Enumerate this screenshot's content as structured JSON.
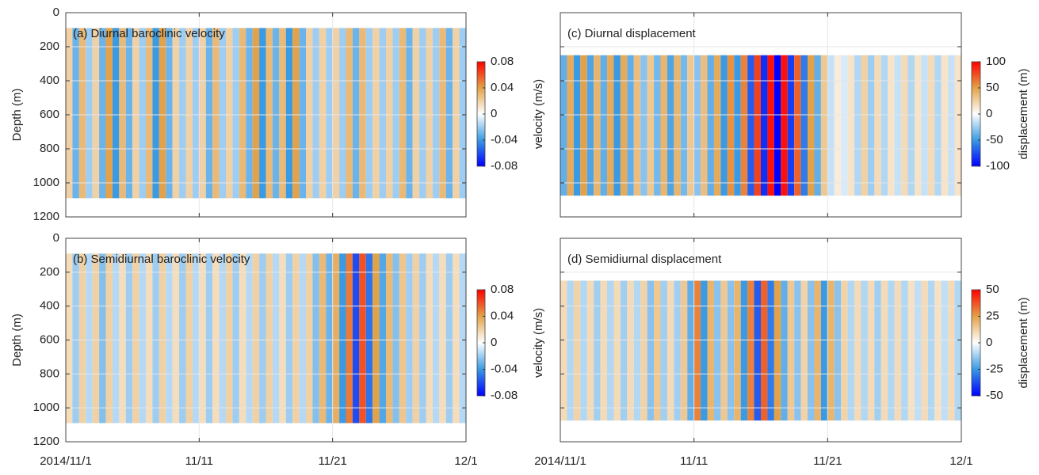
{
  "chart_data": [
    {
      "type": "heatmap",
      "title": "(a) Diurnal baroclinic velocity",
      "ylabel": "Depth (m)",
      "colorbar_label": "velocity (m/s)",
      "xlim": [
        0,
        30
      ],
      "xticks": [
        0,
        10,
        20,
        30
      ],
      "show_xtick_labels": false,
      "ylim": [
        0,
        1200
      ],
      "yticks": [
        0,
        200,
        400,
        600,
        800,
        1000,
        1200
      ],
      "show_ytick_labels": true,
      "y_reversed": true,
      "grid": true,
      "depth_extent": [
        90,
        1090
      ],
      "x": [
        0.25,
        0.75,
        1.25,
        1.75,
        2.25,
        2.75,
        3.25,
        3.75,
        4.25,
        4.75,
        5.25,
        5.75,
        6.25,
        6.75,
        7.25,
        7.75,
        8.25,
        8.75,
        9.25,
        9.75,
        10.25,
        10.75,
        11.25,
        11.75,
        12.25,
        12.75,
        13.25,
        13.75,
        14.25,
        14.75,
        15.25,
        15.75,
        16.25,
        16.75,
        17.25,
        17.75,
        18.25,
        18.75,
        19.25,
        19.75,
        20.25,
        20.75,
        21.25,
        21.75,
        22.25,
        22.75,
        23.25,
        23.75,
        24.25,
        24.75,
        25.25,
        25.75,
        26.25,
        26.75,
        27.25,
        27.75,
        28.25,
        28.75,
        29.25,
        29.75
      ],
      "values": [
        0.02,
        -0.03,
        0.03,
        -0.02,
        0.02,
        -0.03,
        0.04,
        -0.04,
        0.03,
        -0.03,
        0.02,
        -0.02,
        0.03,
        -0.04,
        0.04,
        -0.03,
        0.02,
        -0.02,
        0.02,
        -0.02,
        0.02,
        -0.03,
        0.03,
        -0.02,
        0.02,
        -0.02,
        0.03,
        -0.03,
        0.04,
        -0.04,
        0.03,
        -0.03,
        0.03,
        -0.04,
        0.04,
        -0.03,
        0.02,
        -0.02,
        0.02,
        -0.02,
        0.02,
        -0.02,
        0.03,
        -0.03,
        0.03,
        -0.02,
        0.02,
        -0.02,
        0.02,
        -0.02,
        0.03,
        -0.03,
        0.02,
        -0.02,
        0.02,
        -0.02,
        0.03,
        -0.03,
        0.02,
        -0.02
      ],
      "clim": [
        -0.08,
        0.08
      ],
      "cticks": [
        -0.08,
        -0.04,
        0,
        0.04,
        0.08
      ],
      "colormap": [
        "#0000ff",
        "#3a9ae4",
        "#ffffff",
        "#e3a248",
        "#ff0000"
      ]
    },
    {
      "type": "heatmap",
      "title": "(b) Semidiurnal baroclinic velocity",
      "ylabel": "Depth (m)",
      "colorbar_label": "velocity (m/s)",
      "xlim": [
        0,
        30
      ],
      "xticks": [
        {
          "value": 0,
          "label": "2014/11/1"
        },
        {
          "value": 10,
          "label": "11/11"
        },
        {
          "value": 20,
          "label": "11/21"
        },
        {
          "value": 30,
          "label": "12/1"
        }
      ],
      "show_xtick_labels": true,
      "ylim": [
        0,
        1200
      ],
      "yticks": [
        0,
        200,
        400,
        600,
        800,
        1000,
        1200
      ],
      "show_ytick_labels": true,
      "y_reversed": true,
      "grid": true,
      "depth_extent": [
        90,
        1090
      ],
      "x": [
        0.25,
        0.75,
        1.25,
        1.75,
        2.25,
        2.75,
        3.25,
        3.75,
        4.25,
        4.75,
        5.25,
        5.75,
        6.25,
        6.75,
        7.25,
        7.75,
        8.25,
        8.75,
        9.25,
        9.75,
        10.25,
        10.75,
        11.25,
        11.75,
        12.25,
        12.75,
        13.25,
        13.75,
        14.25,
        14.75,
        15.25,
        15.75,
        16.25,
        16.75,
        17.25,
        17.75,
        18.25,
        18.75,
        19.25,
        19.75,
        20.25,
        20.75,
        21.25,
        21.75,
        22.25,
        22.75,
        23.25,
        23.75,
        24.25,
        24.75,
        25.25,
        25.75,
        26.25,
        26.75,
        27.25,
        27.75,
        28.25,
        28.75,
        29.25,
        29.75
      ],
      "values": [
        0.015,
        -0.02,
        0.02,
        -0.015,
        0.02,
        -0.025,
        0.02,
        -0.015,
        0.015,
        -0.02,
        0.02,
        -0.015,
        0.015,
        -0.02,
        0.02,
        -0.015,
        0.015,
        -0.02,
        0.02,
        -0.015,
        0.015,
        -0.02,
        0.015,
        -0.015,
        0.02,
        -0.02,
        0.015,
        -0.015,
        0.02,
        -0.02,
        0.02,
        -0.015,
        0.015,
        -0.02,
        0.02,
        -0.015,
        0.02,
        -0.025,
        0.03,
        -0.03,
        0.035,
        -0.04,
        0.05,
        -0.06,
        0.06,
        -0.05,
        0.04,
        -0.035,
        0.03,
        -0.025,
        0.025,
        -0.02,
        0.02,
        -0.02,
        0.015,
        -0.015,
        0.015,
        -0.02,
        0.015,
        -0.015
      ],
      "clim": [
        -0.08,
        0.08
      ],
      "cticks": [
        -0.08,
        -0.04,
        0,
        0.04,
        0.08
      ],
      "colormap": [
        "#0000ff",
        "#3a9ae4",
        "#ffffff",
        "#e3a248",
        "#ff0000"
      ]
    },
    {
      "type": "heatmap",
      "title": "(c) Diurnal displacement",
      "colorbar_label": "displacement (m)",
      "xlim": [
        0,
        30
      ],
      "xticks": [
        0,
        10,
        20,
        30
      ],
      "show_xtick_labels": false,
      "ylim": [
        0,
        1200
      ],
      "yticks": [
        0,
        200,
        400,
        600,
        800,
        1000,
        1200
      ],
      "show_ytick_labels": false,
      "y_reversed": true,
      "grid": true,
      "depth_extent": [
        250,
        1075
      ],
      "x": [
        0.25,
        0.75,
        1.25,
        1.75,
        2.25,
        2.75,
        3.25,
        3.75,
        4.25,
        4.75,
        5.25,
        5.75,
        6.25,
        6.75,
        7.25,
        7.75,
        8.25,
        8.75,
        9.25,
        9.75,
        10.25,
        10.75,
        11.25,
        11.75,
        12.25,
        12.75,
        13.25,
        13.75,
        14.25,
        14.75,
        15.25,
        15.75,
        16.25,
        16.75,
        17.25,
        17.75,
        18.25,
        18.75,
        19.25,
        19.75,
        20.25,
        20.75,
        21.25,
        21.75,
        22.25,
        22.75,
        23.25,
        23.75,
        24.25,
        24.75,
        25.25,
        25.75,
        26.25,
        26.75,
        27.25,
        27.75,
        28.25,
        28.75,
        29.25,
        29.75
      ],
      "values": [
        -40,
        45,
        -50,
        50,
        -45,
        40,
        -40,
        45,
        -50,
        45,
        -40,
        35,
        -30,
        30,
        -35,
        40,
        -45,
        40,
        -35,
        30,
        -30,
        35,
        -40,
        45,
        -50,
        55,
        -50,
        60,
        -70,
        80,
        -85,
        95,
        -100,
        95,
        -80,
        70,
        -60,
        50,
        -40,
        30,
        -15,
        10,
        -10,
        15,
        -20,
        25,
        -25,
        20,
        -20,
        15,
        -15,
        20,
        -20,
        15,
        -15,
        20,
        -20,
        15,
        -15,
        15
      ],
      "clim": [
        -100,
        100
      ],
      "cticks": [
        -100,
        -50,
        0,
        50,
        100
      ],
      "colormap": [
        "#0000ff",
        "#3a9ae4",
        "#ffffff",
        "#e3a248",
        "#ff0000"
      ]
    },
    {
      "type": "heatmap",
      "title": "(d) Semidiurnal displacement",
      "colorbar_label": "displacement (m)",
      "xlim": [
        0,
        30
      ],
      "xticks": [
        {
          "value": 0,
          "label": "2014/11/1"
        },
        {
          "value": 10,
          "label": "11/11"
        },
        {
          "value": 20,
          "label": "11/21"
        },
        {
          "value": 30,
          "label": "12/1"
        }
      ],
      "show_xtick_labels": true,
      "ylim": [
        0,
        1200
      ],
      "yticks": [
        0,
        200,
        400,
        600,
        800,
        1000,
        1200
      ],
      "show_ytick_labels": false,
      "y_reversed": true,
      "grid": true,
      "depth_extent": [
        250,
        1075
      ],
      "x": [
        0.25,
        0.75,
        1.25,
        1.75,
        2.25,
        2.75,
        3.25,
        3.75,
        4.25,
        4.75,
        5.25,
        5.75,
        6.25,
        6.75,
        7.25,
        7.75,
        8.25,
        8.75,
        9.25,
        9.75,
        10.25,
        10.75,
        11.25,
        11.75,
        12.25,
        12.75,
        13.25,
        13.75,
        14.25,
        14.75,
        15.25,
        15.75,
        16.25,
        16.75,
        17.25,
        17.75,
        18.25,
        18.75,
        19.25,
        19.75,
        20.25,
        20.75,
        21.25,
        21.75,
        22.25,
        22.75,
        23.25,
        23.75,
        24.25,
        24.75,
        25.25,
        25.75,
        26.25,
        26.75,
        27.25,
        27.75,
        28.25,
        28.75,
        29.25,
        29.75
      ],
      "values": [
        10,
        -10,
        12,
        -10,
        10,
        -12,
        10,
        -10,
        10,
        -12,
        10,
        -10,
        12,
        -15,
        15,
        -12,
        10,
        -12,
        15,
        -20,
        30,
        -25,
        20,
        -15,
        15,
        -15,
        20,
        -25,
        30,
        -35,
        35,
        -30,
        25,
        -20,
        15,
        -15,
        12,
        -15,
        20,
        -25,
        20,
        -15,
        12,
        -10,
        10,
        -10,
        10,
        -12,
        10,
        -10,
        10,
        -10,
        8,
        -8,
        10,
        -10,
        8,
        -8,
        10,
        -10
      ],
      "clim": [
        -50,
        50
      ],
      "cticks": [
        -50,
        -25,
        0,
        25,
        50
      ],
      "colormap": [
        "#0000ff",
        "#3a9ae4",
        "#ffffff",
        "#e3a248",
        "#ff0000"
      ]
    }
  ]
}
